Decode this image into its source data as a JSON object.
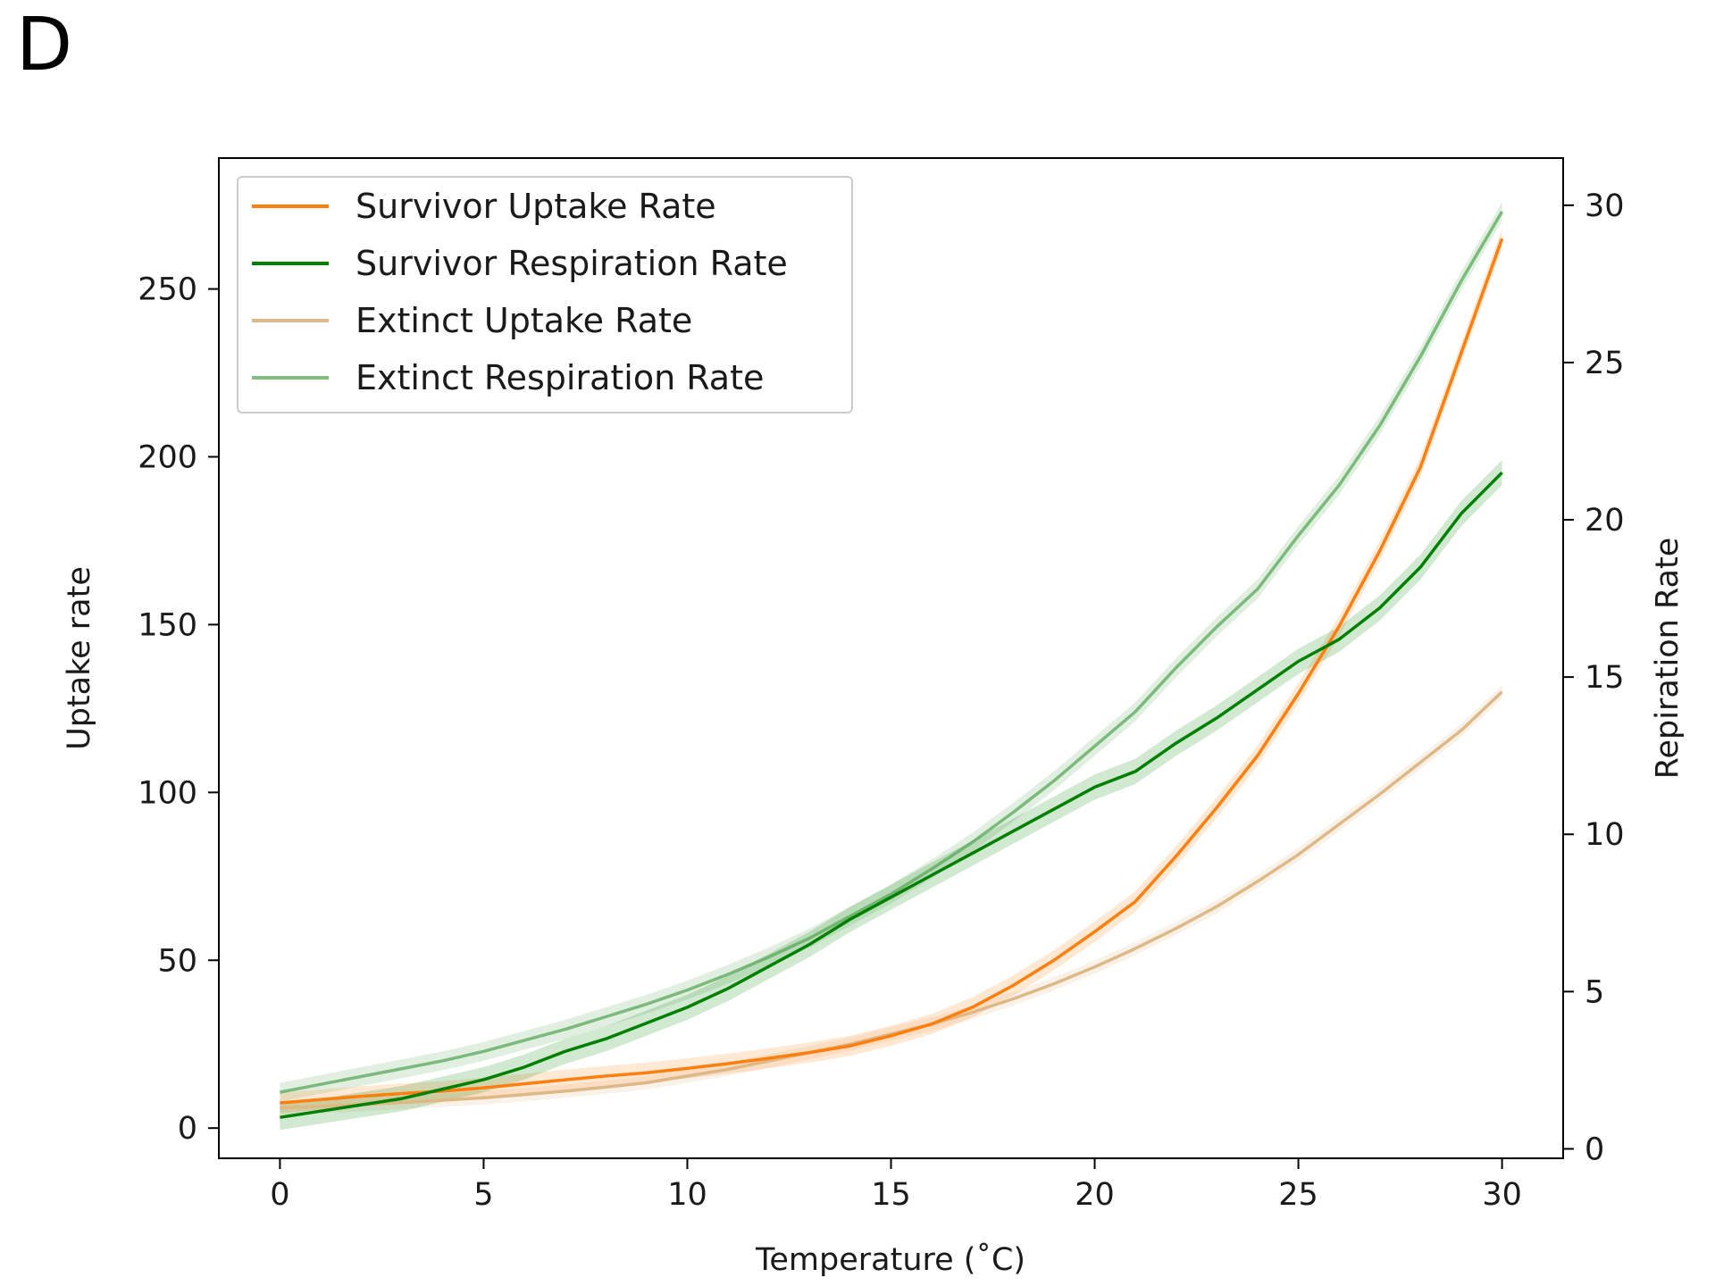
{
  "panel_label": "D",
  "chart_data": {
    "type": "line",
    "title": "",
    "xlabel": "Temperature ($^\\circ$C)",
    "xlabel_display": "Temperature (˚C)",
    "ylabel": "Uptake rate",
    "ylabel_right": "Repiration Rate",
    "xlim": [
      -1.5,
      31.5
    ],
    "ylim": [
      -9,
      289
    ],
    "ylim_right": [
      -0.3,
      31.5
    ],
    "xticks": [
      0,
      5,
      10,
      15,
      20,
      25,
      30
    ],
    "yticks": [
      0,
      50,
      100,
      150,
      200,
      250
    ],
    "yticks_right": [
      0,
      5,
      10,
      15,
      20,
      25,
      30
    ],
    "grid": false,
    "legend_position": "top-left",
    "x": [
      0,
      1,
      2,
      3,
      4,
      5,
      6,
      7,
      8,
      9,
      10,
      11,
      12,
      13,
      14,
      15,
      16,
      17,
      18,
      19,
      20,
      21,
      22,
      23,
      24,
      25,
      26,
      27,
      28,
      29,
      30
    ],
    "series": [
      {
        "name": "Survivor Uptake Rate",
        "axis": "left",
        "color": "#ff7f0e",
        "opacity": 1.0,
        "band": 3,
        "values": [
          7.5,
          8.5,
          9.5,
          10.3,
          11.0,
          12.0,
          13.2,
          14.4,
          15.5,
          16.5,
          17.8,
          19.2,
          20.8,
          22.5,
          24.5,
          27.5,
          31.0,
          36.0,
          42.5,
          50.0,
          58.5,
          67.5,
          81.0,
          95.5,
          111.0,
          129.5,
          149.5,
          172.0,
          197.0,
          231.0,
          265.0
        ]
      },
      {
        "name": "Survivor Respiration Rate",
        "axis": "right",
        "color": "#008000",
        "opacity": 1.0,
        "band": 0.4,
        "values": [
          1.0,
          1.2,
          1.4,
          1.6,
          1.9,
          2.2,
          2.6,
          3.1,
          3.5,
          4.0,
          4.5,
          5.1,
          5.8,
          6.5,
          7.3,
          8.0,
          8.7,
          9.4,
          10.1,
          10.8,
          11.5,
          12.0,
          12.9,
          13.7,
          14.6,
          15.5,
          16.2,
          17.2,
          18.5,
          20.2,
          21.5
        ]
      },
      {
        "name": "Extinct Uptake Rate",
        "axis": "left",
        "color": "#deb887",
        "opacity": 1.0,
        "band": 2,
        "values": [
          6.0,
          6.5,
          7.0,
          7.6,
          8.3,
          9.0,
          10.0,
          11.0,
          12.2,
          13.5,
          15.5,
          17.5,
          20.0,
          22.5,
          25.0,
          28.0,
          31.0,
          34.5,
          38.5,
          43.0,
          48.0,
          53.5,
          59.5,
          66.0,
          73.5,
          81.5,
          90.5,
          99.5,
          109.0,
          118.5,
          130.0
        ]
      },
      {
        "name": "Extinct Respiration Rate",
        "axis": "right",
        "color": "#5aa85a",
        "opacity": 0.75,
        "band": 0.3,
        "values": [
          1.8,
          2.05,
          2.3,
          2.55,
          2.8,
          3.1,
          3.45,
          3.8,
          4.2,
          4.6,
          5.05,
          5.55,
          6.1,
          6.7,
          7.4,
          8.1,
          8.9,
          9.75,
          10.7,
          11.7,
          12.8,
          13.9,
          15.3,
          16.6,
          17.8,
          19.5,
          21.1,
          23.0,
          25.2,
          27.6,
          29.8
        ]
      }
    ]
  }
}
